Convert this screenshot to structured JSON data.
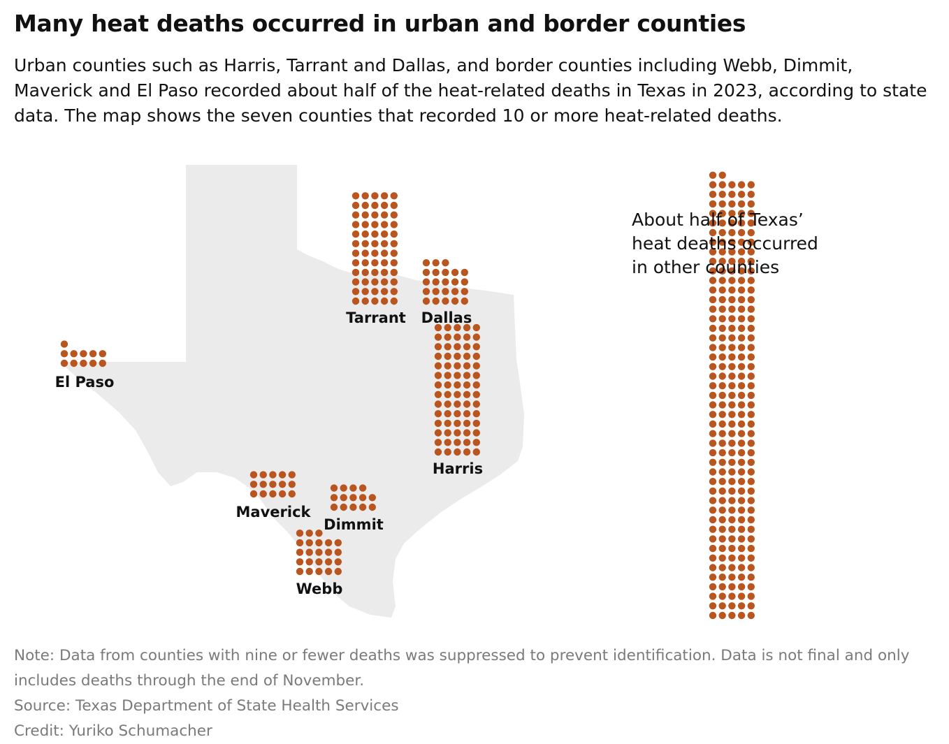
{
  "header": {
    "title": "Many heat deaths occurred in urban and border counties",
    "subtitle": "Urban counties such as Harris, Tarrant and Dallas, and border counties including Webb, Dimmit, Maverick and El Paso recorded about half of the heat-related deaths in Texas in 2023, according to state data. The map shows the seven counties that recorded 10 or more heat-related deaths."
  },
  "map": {
    "region": "Texas",
    "colors": {
      "state_fill": "#ebebeb",
      "dot": "#b9551f"
    },
    "counties": [
      {
        "name": "Tarrant",
        "deaths": 60
      },
      {
        "name": "Dallas",
        "deaths": 23
      },
      {
        "name": "El Paso",
        "deaths": 11
      },
      {
        "name": "Harris",
        "deaths": 70
      },
      {
        "name": "Maverick",
        "deaths": 15
      },
      {
        "name": "Dimmit",
        "deaths": 14
      },
      {
        "name": "Webb",
        "deaths": 23
      }
    ],
    "other": {
      "label_lines": [
        "About half of Texas’",
        "heat deaths occurred",
        "in other counties"
      ],
      "deaths": 232
    }
  },
  "footer": {
    "note": "Note: Data from counties with nine or fewer deaths was suppressed to prevent identification. Data is not final and only includes deaths through the end of November.",
    "source": "Source: Texas Department of State Health Services",
    "credit": "Credit: Yuriko Schumacher"
  }
}
